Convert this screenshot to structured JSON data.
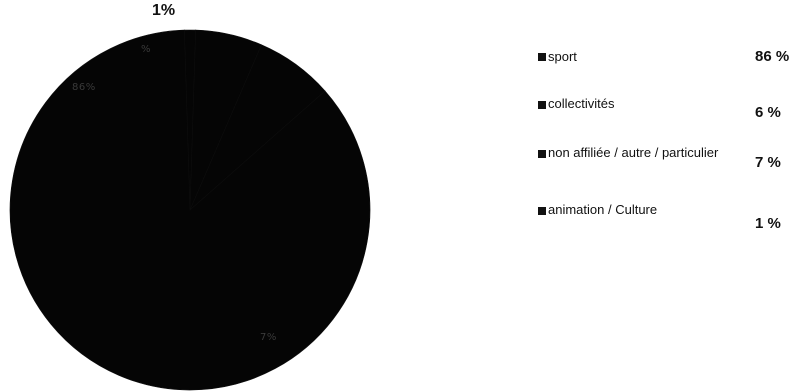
{
  "chart_data": {
    "type": "pie",
    "categories": [
      "sport",
      "collectivités",
      "non affiliée / autre / particulier",
      "animation / Culture"
    ],
    "values": [
      86,
      6,
      7,
      1
    ],
    "value_labels": [
      "86 %",
      "6 %",
      "7 %",
      "1 %"
    ],
    "slice_labels": {
      "top": "1%",
      "inner_upper": "%",
      "inner_left": "86%",
      "inner_lower": "7%"
    },
    "legend_position": "right",
    "colors": {
      "slices": "#050505",
      "edge": "#0d0d0d",
      "legend": "#111111"
    }
  }
}
